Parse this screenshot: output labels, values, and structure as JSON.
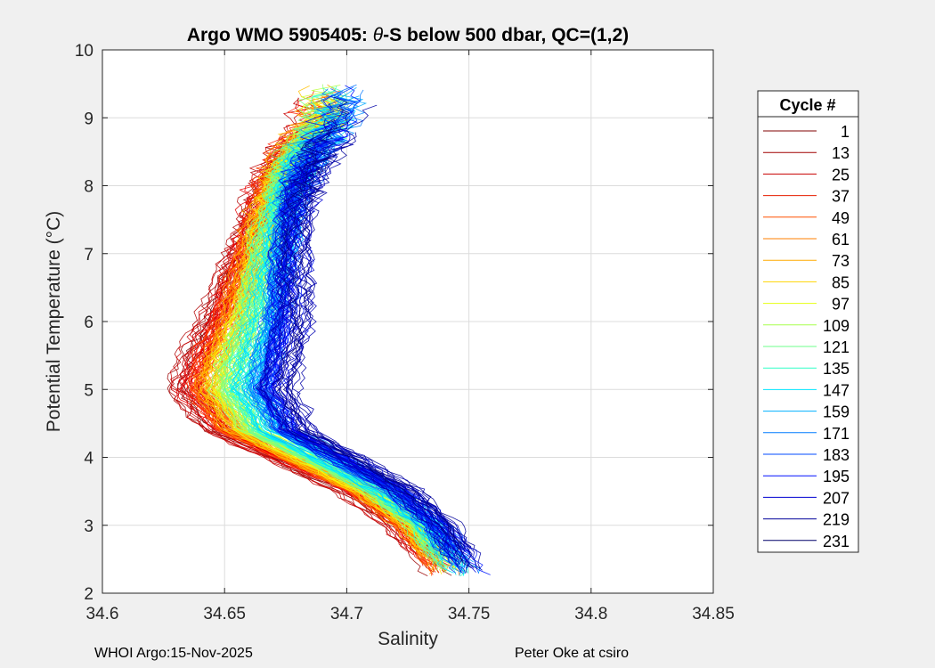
{
  "chart_data": {
    "type": "line",
    "title_main": "Argo WMO 5905405: ",
    "title_theta": "θ",
    "title_rest": "-S below 500 dbar,  QC=(1,2)",
    "xlabel": "Salinity",
    "ylabel": "Potential Temperature (°C)",
    "xlim": [
      34.6,
      34.85
    ],
    "ylim": [
      2,
      10
    ],
    "xticks": [
      "34.6",
      "34.65",
      "34.7",
      "34.75",
      "34.8",
      "34.85"
    ],
    "yticks": [
      "2",
      "3",
      "4",
      "5",
      "6",
      "7",
      "8",
      "9",
      "10"
    ],
    "grid": true,
    "colormap": "jet",
    "legend": {
      "title": "Cycle #",
      "placement": "right-outside",
      "entries": [
        "1",
        "13",
        "25",
        "37",
        "49",
        "61",
        "73",
        "85",
        "97",
        "109",
        "121",
        "135",
        "147",
        "159",
        "171",
        "183",
        "195",
        "207",
        "219",
        "231"
      ],
      "colors": [
        "#800000",
        "#a00000",
        "#c80000",
        "#e61e00",
        "#ff5000",
        "#ff7f00",
        "#ffaa00",
        "#ffd400",
        "#e6ff10",
        "#a8ff4f",
        "#6cff8b",
        "#30ffc7",
        "#00e6ff",
        "#00b0ff",
        "#007cff",
        "#0048ff",
        "#0010ff",
        "#0000d0",
        "#00009a",
        "#000068"
      ]
    },
    "series_template": {
      "description_points": [
        {
          "T": 2.3,
          "S": 34.736
        },
        {
          "T": 3.0,
          "S": 34.72
        },
        {
          "T": 3.5,
          "S": 34.7
        },
        {
          "T": 4.0,
          "S": 34.67
        },
        {
          "T": 4.4,
          "S": 34.645
        },
        {
          "T": 5.0,
          "S": 34.632
        },
        {
          "T": 5.5,
          "S": 34.636
        },
        {
          "T": 6.0,
          "S": 34.643
        },
        {
          "T": 7.0,
          "S": 34.655
        },
        {
          "T": 8.0,
          "S": 34.665
        },
        {
          "T": 8.5,
          "S": 34.672
        },
        {
          "T": 9.0,
          "S": 34.683
        }
      ],
      "salinity_shift_first_to_last": 0.03
    }
  },
  "footer": {
    "left": "WHOI Argo:15-Nov-2025",
    "right": "Peter Oke at csiro"
  }
}
